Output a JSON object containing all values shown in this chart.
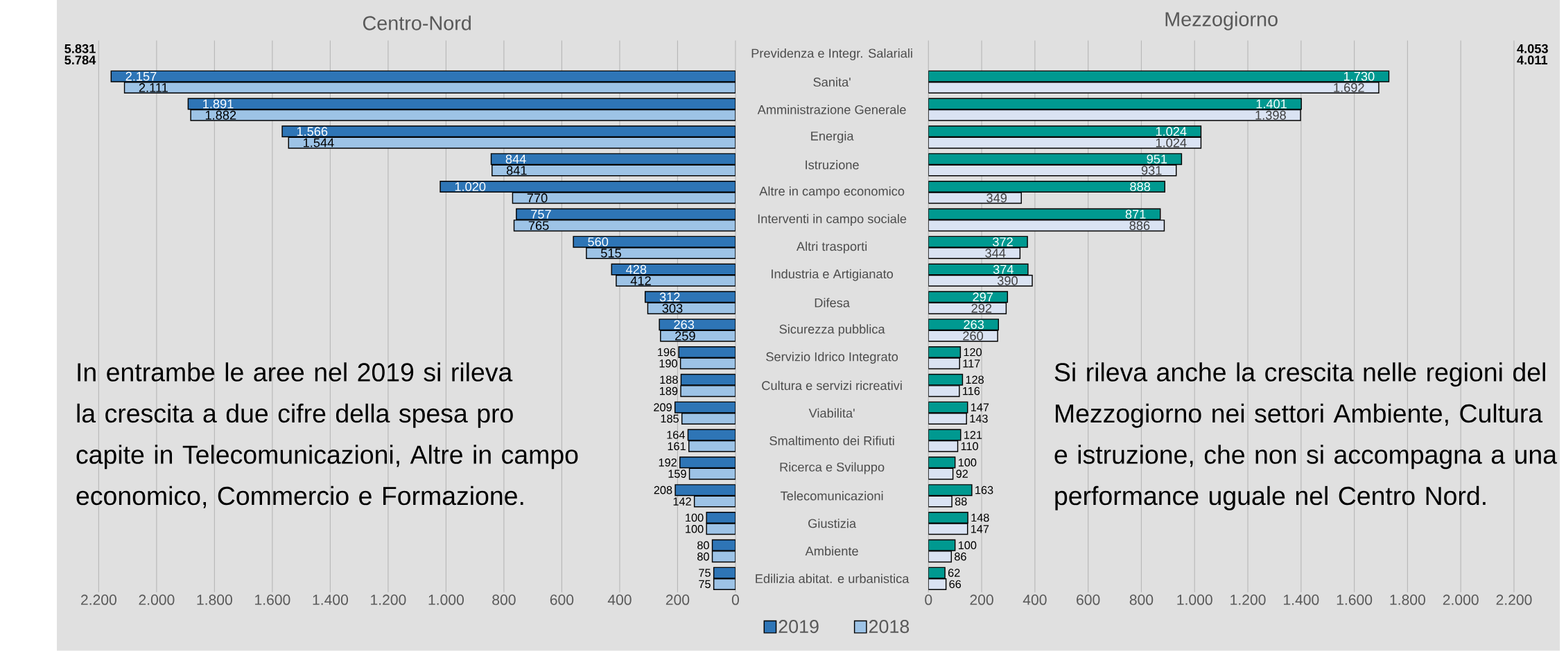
{
  "chart_data": [
    {
      "type": "bar",
      "orientation": "horizontal",
      "title": "Centro-Nord",
      "categories": [
        null,
        null,
        null,
        null,
        null,
        null,
        null,
        null,
        null,
        null,
        null,
        null,
        null,
        null,
        null,
        null,
        null,
        null,
        null,
        null
      ],
      "series": [
        {
          "name": "2019",
          "color": "#2e75b6",
          "values": [
            null,
            2157,
            1891,
            1566,
            844,
            1020,
            757,
            560,
            428,
            312,
            263,
            196,
            188,
            209,
            164,
            192,
            208,
            100,
            80,
            75
          ],
          "value_labels": [
            "5.831",
            "2.157",
            "1.891",
            "1.566",
            "844",
            "1.020",
            "757",
            "560",
            "428",
            "312",
            "263",
            "196",
            "188",
            "209",
            "164",
            "192",
            "208",
            "100",
            "80",
            "75"
          ]
        },
        {
          "name": "2018",
          "color": "#9dc3e6",
          "values": [
            null,
            2111,
            1882,
            1544,
            841,
            770,
            765,
            515,
            412,
            303,
            259,
            190,
            189,
            185,
            161,
            159,
            142,
            100,
            80,
            75
          ],
          "value_labels": [
            "5.784",
            "2.111",
            "1.882",
            "1.544",
            "841",
            "770",
            "765",
            "515",
            "412",
            "303",
            "259",
            "190",
            "189",
            "185",
            "161",
            "159",
            "142",
            "100",
            "80",
            "75"
          ]
        }
      ],
      "xlim": [
        2200,
        0
      ],
      "xticks": [
        {
          "value": 2200,
          "label": "2.200"
        },
        {
          "value": 2000,
          "label": "2.000"
        },
        {
          "value": 1800,
          "label": "1.800"
        },
        {
          "value": 1600,
          "label": "1.600"
        },
        {
          "value": 1400,
          "label": "1.400"
        },
        {
          "value": 1200,
          "label": "1.200"
        },
        {
          "value": 1000,
          "label": "1.000"
        },
        800,
        600,
        400,
        200,
        0
      ],
      "grid": "x",
      "legend": "bottom",
      "tick_labels": "x",
      "annotations": [
        "In entrambe le aree nel 2019 si rileva la crescita a due cifre della spesa pro capite in Telecomunicazioni, Altre in campo economico, Commercio e Formazione."
      ]
    },
    {
      "type": "bar",
      "orientation": "horizontal",
      "title": "Mezzogiorno",
      "categories": [
        "Previdenza e Integr. Salariali",
        "Sanita'",
        "Amministrazione Generale",
        "Energia",
        "Istruzione",
        "Altre in campo economico",
        "Interventi in campo sociale",
        "Altri trasporti",
        "Industria e Artigianato",
        "Difesa",
        "Sicurezza pubblica",
        "Servizio Idrico Integrato",
        "Cultura e servizi ricreativi",
        "Viabilita'",
        "Smaltimento dei Rifiuti",
        "Ricerca e Sviluppo",
        "Telecomunicazioni",
        "Giustizia",
        "Ambiente",
        "Edilizia abitat. e urbanistica"
      ],
      "series": [
        {
          "color": "#009990",
          "values": [
            null,
            1730,
            1401,
            1024,
            951,
            888,
            871,
            372,
            374,
            297,
            263,
            120,
            128,
            147,
            121,
            100,
            163,
            148,
            100,
            62
          ],
          "value_labels": [
            "4.053",
            "1.730",
            "1.401",
            "1.024",
            "951",
            "888",
            "871",
            "372",
            "374",
            "297",
            "263",
            "120",
            "128",
            "147",
            "121",
            "100",
            "163",
            "148",
            "100",
            "62"
          ]
        },
        {
          "color": "#dae3f3",
          "values": [
            null,
            1692,
            1398,
            1024,
            931,
            349,
            886,
            344,
            390,
            292,
            260,
            117,
            116,
            143,
            110,
            92,
            88,
            147,
            86,
            66
          ],
          "value_labels": [
            "4.011",
            "1.692",
            "1.398",
            "1.024",
            "931",
            "349",
            "886",
            "344",
            "390",
            "292",
            "260",
            "117",
            "116",
            "143",
            "110",
            "92",
            "88",
            "147",
            "86",
            "66"
          ]
        }
      ],
      "xlim": [
        0,
        2200
      ],
      "xticks": [
        0,
        200,
        400,
        600,
        800,
        {
          "value": 1000,
          "label": "1.000"
        },
        {
          "value": 1200,
          "label": "1.200"
        },
        {
          "value": 1400,
          "label": "1.400"
        },
        {
          "value": 1600,
          "label": "1.600"
        },
        {
          "value": 1800,
          "label": "1.800"
        },
        {
          "value": 2000,
          "label": "2.000"
        },
        {
          "value": 2200,
          "label": "2.200"
        }
      ],
      "grid": "x",
      "annotations": [
        "Si rileva anche la crescita nelle regioni del Mezzogiorno nei settori Ambiente, Cultura e istruzione, che non si accompagna a una performance uguale nel Centro Nord."
      ]
    }
  ]
}
